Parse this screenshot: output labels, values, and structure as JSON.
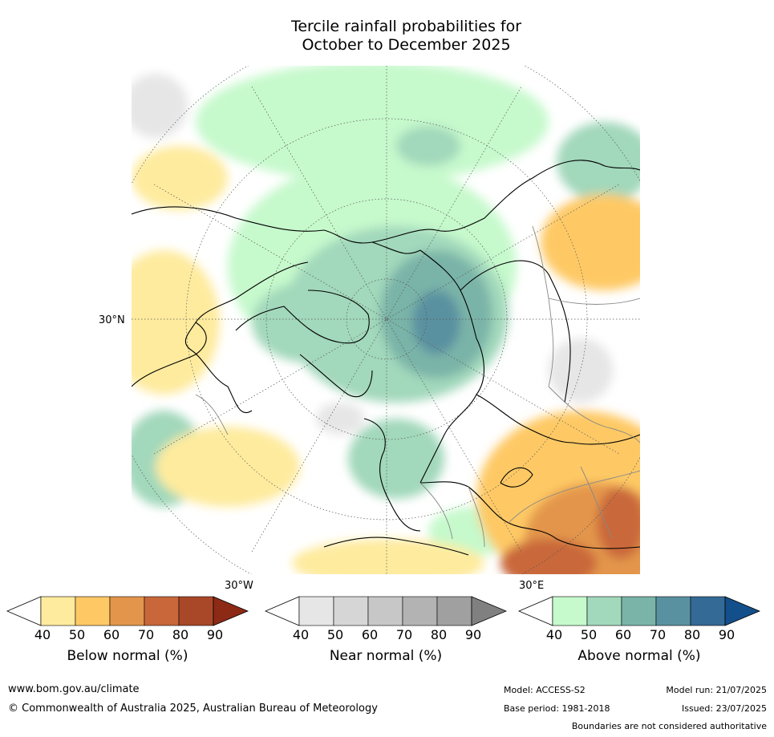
{
  "title_line1": "Tercile rainfall probabilities for",
  "title_line2": "October to December 2025",
  "map": {
    "lat_label": "30°N",
    "lon_label_west": "30°W",
    "lon_label_east": "30°E"
  },
  "colorbars": [
    {
      "title": "Below normal (%)",
      "ticks": [
        "40",
        "50",
        "60",
        "70",
        "80",
        "90"
      ],
      "colors": [
        "#ffffff",
        "#feeb9e",
        "#fec965",
        "#e3964b",
        "#c9673a",
        "#a84828",
        "#8c2a15"
      ]
    },
    {
      "title": "Near normal (%)",
      "ticks": [
        "40",
        "50",
        "60",
        "70",
        "80",
        "90"
      ],
      "colors": [
        "#ffffff",
        "#e6e6e6",
        "#d6d6d6",
        "#c7c7c7",
        "#b3b3b3",
        "#a0a0a0",
        "#808080"
      ]
    },
    {
      "title": "Above normal (%)",
      "ticks": [
        "40",
        "50",
        "60",
        "70",
        "80",
        "90"
      ],
      "colors": [
        "#ffffff",
        "#c6f9cc",
        "#a2d8bb",
        "#7ab4a8",
        "#5a91a0",
        "#346a96",
        "#134f8a"
      ]
    }
  ],
  "footer": {
    "website": "www.bom.gov.au/climate",
    "copyright": "© Commonwealth of Australia 2025, Australian Bureau of Meteorology",
    "model": "Model: ACCESS-S2",
    "base_period": "Base period: 1981-2018",
    "model_run": "Model run: 21/07/2025",
    "issued": "Issued: 23/07/2025",
    "boundaries_note": "Boundaries are not considered authoritative"
  }
}
